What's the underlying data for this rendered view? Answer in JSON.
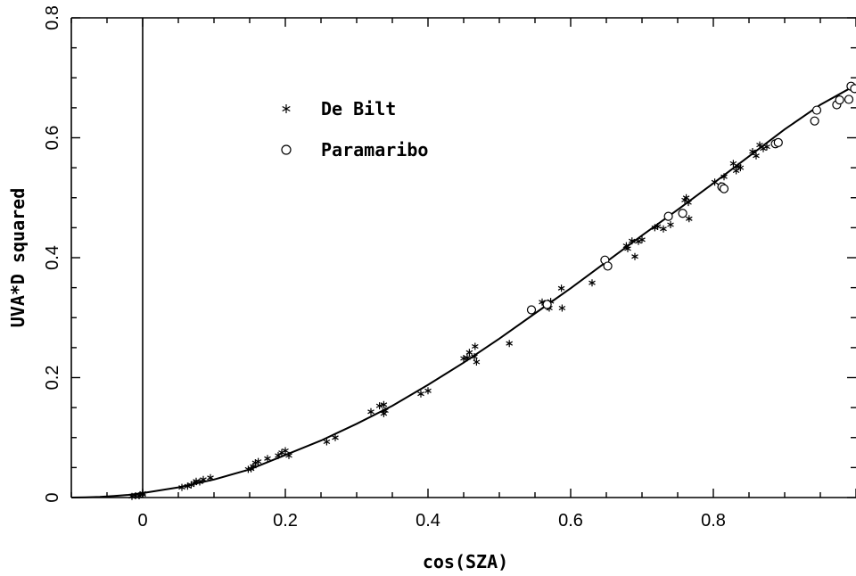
{
  "chart_data": {
    "type": "scatter",
    "title": "",
    "xlabel": "cos(SZA)",
    "ylabel": "UVA*D squared",
    "xlim": [
      -0.1,
      1.0
    ],
    "ylim": [
      0,
      0.8
    ],
    "x_ticks": [
      {
        "value": 0,
        "label": "0"
      },
      {
        "value": 0.2,
        "label": "0.2"
      },
      {
        "value": 0.4,
        "label": "0.4"
      },
      {
        "value": 0.6,
        "label": "0.6"
      },
      {
        "value": 0.8,
        "label": "0.8"
      }
    ],
    "y_ticks": [
      {
        "value": 0,
        "label": "0"
      },
      {
        "value": 0.2,
        "label": "0.2"
      },
      {
        "value": 0.4,
        "label": "0.4"
      },
      {
        "value": 0.6,
        "label": "0.6"
      },
      {
        "value": 0.8,
        "label": "0.8"
      }
    ],
    "grid": false,
    "vertical_reference_line_x": 0,
    "legend_position": "upper-left",
    "series": [
      {
        "name": "De Bilt",
        "marker": "asterisk",
        "points": [
          [
            -0.015,
            0.002
          ],
          [
            -0.01,
            0.003
          ],
          [
            -0.005,
            0.003
          ],
          [
            0.0,
            0.005
          ],
          [
            0.0,
            0.007
          ],
          [
            0.055,
            0.017
          ],
          [
            0.063,
            0.019
          ],
          [
            0.068,
            0.021
          ],
          [
            0.072,
            0.024
          ],
          [
            0.075,
            0.027
          ],
          [
            0.08,
            0.026
          ],
          [
            0.085,
            0.03
          ],
          [
            0.095,
            0.033
          ],
          [
            0.148,
            0.047
          ],
          [
            0.152,
            0.048
          ],
          [
            0.155,
            0.052
          ],
          [
            0.158,
            0.058
          ],
          [
            0.162,
            0.06
          ],
          [
            0.175,
            0.065
          ],
          [
            0.19,
            0.07
          ],
          [
            0.195,
            0.075
          ],
          [
            0.2,
            0.078
          ],
          [
            0.205,
            0.07
          ],
          [
            0.258,
            0.093
          ],
          [
            0.27,
            0.1
          ],
          [
            0.32,
            0.143
          ],
          [
            0.332,
            0.153
          ],
          [
            0.338,
            0.155
          ],
          [
            0.338,
            0.14
          ],
          [
            0.34,
            0.145
          ],
          [
            0.39,
            0.173
          ],
          [
            0.4,
            0.178
          ],
          [
            0.45,
            0.232
          ],
          [
            0.455,
            0.233
          ],
          [
            0.458,
            0.242
          ],
          [
            0.465,
            0.235
          ],
          [
            0.466,
            0.252
          ],
          [
            0.468,
            0.226
          ],
          [
            0.514,
            0.257
          ],
          [
            0.56,
            0.326
          ],
          [
            0.566,
            0.322
          ],
          [
            0.568,
            0.318
          ],
          [
            0.57,
            0.316
          ],
          [
            0.572,
            0.327
          ],
          [
            0.587,
            0.349
          ],
          [
            0.588,
            0.316
          ],
          [
            0.63,
            0.358
          ],
          [
            0.648,
            0.39
          ],
          [
            0.678,
            0.42
          ],
          [
            0.68,
            0.415
          ],
          [
            0.686,
            0.428
          ],
          [
            0.69,
            0.402
          ],
          [
            0.695,
            0.427
          ],
          [
            0.7,
            0.43
          ],
          [
            0.718,
            0.45
          ],
          [
            0.722,
            0.452
          ],
          [
            0.73,
            0.448
          ],
          [
            0.74,
            0.455
          ],
          [
            0.76,
            0.496
          ],
          [
            0.762,
            0.5
          ],
          [
            0.765,
            0.492
          ],
          [
            0.766,
            0.465
          ],
          [
            0.802,
            0.526
          ],
          [
            0.81,
            0.52
          ],
          [
            0.815,
            0.535
          ],
          [
            0.828,
            0.557
          ],
          [
            0.832,
            0.545
          ],
          [
            0.835,
            0.552
          ],
          [
            0.838,
            0.55
          ],
          [
            0.855,
            0.577
          ],
          [
            0.86,
            0.57
          ],
          [
            0.865,
            0.588
          ],
          [
            0.87,
            0.582
          ],
          [
            0.875,
            0.585
          ]
        ]
      },
      {
        "name": "Paramaribo",
        "marker": "circle",
        "points": [
          [
            0.545,
            0.313
          ],
          [
            0.567,
            0.322
          ],
          [
            0.648,
            0.396
          ],
          [
            0.652,
            0.386
          ],
          [
            0.737,
            0.469
          ],
          [
            0.757,
            0.474
          ],
          [
            0.812,
            0.518
          ],
          [
            0.815,
            0.515
          ],
          [
            0.887,
            0.59
          ],
          [
            0.891,
            0.592
          ],
          [
            0.942,
            0.628
          ],
          [
            0.945,
            0.646
          ],
          [
            0.973,
            0.655
          ],
          [
            0.977,
            0.663
          ],
          [
            0.99,
            0.664
          ],
          [
            0.993,
            0.686
          ],
          [
            0.998,
            0.682
          ]
        ]
      }
    ],
    "fit_curve": {
      "points": [
        [
          -0.1,
          0.0
        ],
        [
          -0.08,
          0.0003
        ],
        [
          -0.06,
          0.001
        ],
        [
          -0.04,
          0.0025
        ],
        [
          -0.02,
          0.0045
        ],
        [
          0.0,
          0.0075
        ],
        [
          0.05,
          0.017
        ],
        [
          0.1,
          0.03
        ],
        [
          0.15,
          0.047
        ],
        [
          0.2,
          0.071
        ],
        [
          0.25,
          0.095
        ],
        [
          0.3,
          0.123
        ],
        [
          0.35,
          0.153
        ],
        [
          0.4,
          0.188
        ],
        [
          0.45,
          0.225
        ],
        [
          0.5,
          0.265
        ],
        [
          0.55,
          0.307
        ],
        [
          0.6,
          0.349
        ],
        [
          0.65,
          0.393
        ],
        [
          0.7,
          0.437
        ],
        [
          0.75,
          0.48
        ],
        [
          0.8,
          0.524
        ],
        [
          0.85,
          0.569
        ],
        [
          0.9,
          0.614
        ],
        [
          0.95,
          0.655
        ],
        [
          1.0,
          0.688
        ]
      ]
    }
  },
  "legend": {
    "items": [
      {
        "label": "De Bilt",
        "marker": "asterisk"
      },
      {
        "label": "Paramaribo",
        "marker": "circle"
      }
    ]
  }
}
